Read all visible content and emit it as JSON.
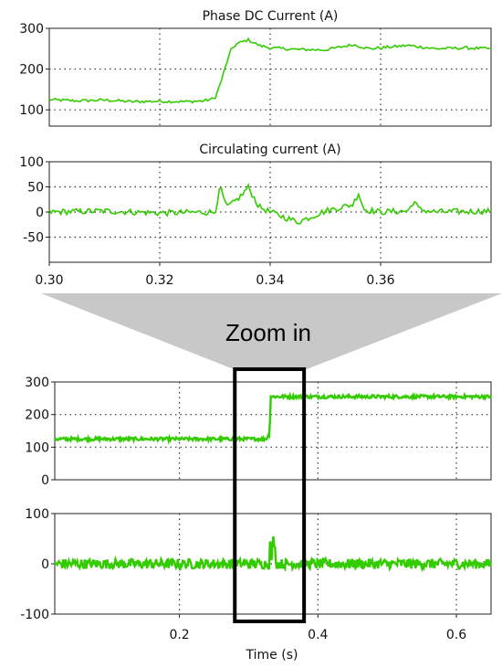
{
  "chart_data": [
    {
      "type": "line",
      "panel": "top-zoom",
      "title": "Phase DC Current (A)",
      "xlim": [
        0.3,
        0.38
      ],
      "ylim": [
        60,
        300
      ],
      "yticks": [
        "300",
        "200",
        "100"
      ],
      "ytick_values": [
        300,
        200,
        100
      ],
      "grid": true,
      "series": [
        {
          "color": "#33cc00",
          "x": [
            0.3,
            0.305,
            0.31,
            0.315,
            0.32,
            0.325,
            0.328,
            0.33,
            0.331,
            0.332,
            0.333,
            0.334,
            0.336,
            0.338,
            0.34,
            0.345,
            0.35,
            0.355,
            0.358,
            0.36,
            0.365,
            0.37,
            0.375,
            0.38
          ],
          "y": [
            125,
            122,
            124,
            120,
            121,
            120,
            122,
            128,
            165,
            210,
            250,
            262,
            272,
            258,
            252,
            248,
            247,
            260,
            250,
            252,
            258,
            250,
            252,
            250
          ]
        }
      ]
    },
    {
      "type": "line",
      "panel": "middle-zoom",
      "title": "Circulating current (A)",
      "xlim": [
        0.3,
        0.38
      ],
      "ylim": [
        -100,
        100
      ],
      "yticks": [
        "100",
        "50",
        "0",
        "-50"
      ],
      "ytick_values": [
        100,
        50,
        0,
        -50
      ],
      "xticks": [
        "0.30",
        "0.32",
        "0.34",
        "0.36"
      ],
      "xtick_values": [
        0.3,
        0.32,
        0.34,
        0.36
      ],
      "grid": true,
      "series": [
        {
          "color": "#33cc00",
          "x": [
            0.3,
            0.31,
            0.32,
            0.33,
            0.331,
            0.332,
            0.333,
            0.334,
            0.335,
            0.336,
            0.337,
            0.338,
            0.34,
            0.345,
            0.35,
            0.355,
            0.356,
            0.357,
            0.36,
            0.365,
            0.366,
            0.367,
            0.37,
            0.38
          ],
          "y": [
            0,
            2,
            -2,
            0,
            50,
            10,
            15,
            25,
            35,
            50,
            30,
            10,
            0,
            -20,
            2,
            15,
            38,
            5,
            0,
            2,
            22,
            5,
            0,
            2
          ]
        }
      ]
    },
    {
      "type": "line",
      "panel": "bottom-full-upper",
      "xlim": [
        0.02,
        0.65
      ],
      "ylim": [
        0,
        300
      ],
      "yticks": [
        "300",
        "200",
        "100",
        "0"
      ],
      "ytick_values": [
        300,
        200,
        100,
        0
      ],
      "grid": true,
      "series": [
        {
          "color": "#33cc00",
          "x": [
            0.02,
            0.1,
            0.2,
            0.3,
            0.325,
            0.33,
            0.332,
            0.335,
            0.4,
            0.5,
            0.65
          ],
          "y": [
            125,
            125,
            125,
            125,
            125,
            140,
            255,
            255,
            255,
            255,
            255
          ]
        }
      ]
    },
    {
      "type": "line",
      "panel": "bottom-full-lower",
      "xlim": [
        0.02,
        0.65
      ],
      "ylim": [
        -100,
        100
      ],
      "yticks": [
        "100",
        "0",
        "-100"
      ],
      "ytick_values": [
        100,
        0,
        -100
      ],
      "xticks": [
        "0.2",
        "0.4",
        "0.6"
      ],
      "xtick_values": [
        0.2,
        0.4,
        0.6
      ],
      "xlabel": "Time (s)",
      "grid": true,
      "series": [
        {
          "color": "#33cc00",
          "x": [
            0.02,
            0.33,
            0.331,
            0.333,
            0.336,
            0.34,
            0.65
          ],
          "y": [
            0,
            0,
            50,
            10,
            55,
            0,
            0
          ]
        }
      ]
    }
  ],
  "annotation": {
    "label": "Zoom in",
    "window_x": [
      0.28,
      0.38
    ]
  }
}
